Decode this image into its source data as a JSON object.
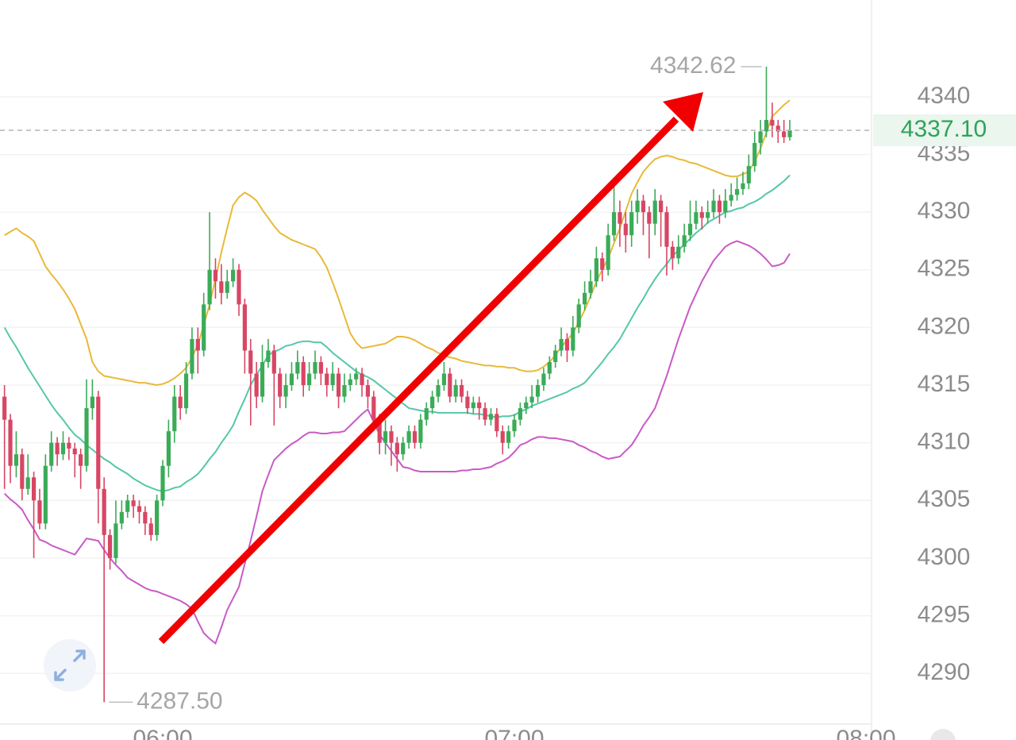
{
  "chart_data": {
    "type": "candlestick",
    "categories": [
      null,
      null,
      null,
      null,
      null,
      null,
      null,
      null,
      null,
      null,
      null,
      null,
      null,
      null,
      null,
      null,
      null,
      null,
      null,
      null,
      null,
      null,
      null,
      null,
      null,
      null,
      null,
      "06:00",
      null,
      null,
      null,
      null,
      null,
      null,
      null,
      null,
      null,
      null,
      null,
      null,
      null,
      null,
      null,
      null,
      null,
      null,
      null,
      null,
      null,
      null,
      null,
      null,
      null,
      null,
      null,
      null,
      null,
      null,
      null,
      null,
      null,
      null,
      null,
      null,
      null,
      null,
      null,
      null,
      null,
      null,
      null,
      null,
      null,
      null,
      null,
      null,
      null,
      null,
      null,
      null,
      null,
      null,
      null,
      null,
      null,
      null,
      null,
      "07:00",
      null,
      null,
      null,
      null,
      null,
      null,
      null,
      null,
      null,
      null,
      null,
      null,
      null,
      null,
      null,
      null,
      null,
      null,
      null,
      null,
      null,
      null,
      null,
      null,
      null,
      null,
      null,
      null,
      null,
      null,
      null,
      null,
      null,
      null,
      null,
      null,
      null,
      null,
      null,
      null,
      null,
      null,
      null,
      null,
      null,
      null,
      null,
      null,
      null,
      null,
      null,
      null,
      null,
      null,
      null,
      null,
      null,
      null,
      null,
      "08:00"
    ],
    "open": [
      4314,
      4312,
      4308,
      4309,
      4306,
      4307,
      4305,
      4303,
      4308,
      4310,
      4309,
      4310,
      4309.5,
      4309,
      4308,
      4313,
      4314,
      4306,
      4302,
      4300,
      4303,
      4304,
      4305,
      4304.5,
      4304,
      4303,
      4302,
      4305,
      4308,
      4311,
      4314,
      4313,
      4316,
      4319,
      4318,
      4322,
      4325,
      4324,
      4323,
      4324,
      4325,
      4322,
      4318,
      4316,
      4314,
      4317,
      4318,
      4316,
      4314,
      4315,
      4316,
      4317,
      4315,
      4316,
      4317,
      4316,
      4315,
      4316,
      4314,
      4315,
      4315.5,
      4316,
      4315,
      4314,
      4312,
      4310,
      4311,
      4310,
      4309,
      4310,
      4311,
      4310,
      4312,
      4313,
      4314,
      4315,
      4316,
      4314,
      4315,
      4314,
      4313,
      4313.5,
      4313,
      4312,
      4312.5,
      4311,
      4310,
      4311,
      4312,
      4313,
      4313.5,
      4314,
      4315,
      4316,
      4317,
      4318,
      4319,
      4318,
      4320,
      4322,
      4323,
      4324,
      4326,
      4325,
      4328,
      4330,
      4329,
      4328,
      4330,
      4331,
      4330,
      4329,
      4331,
      4330,
      4327,
      4326,
      4327,
      4328,
      4329,
      4330,
      4329.5,
      4330,
      4331,
      4330,
      4331,
      4331.5,
      4332,
      4332.5,
      4334,
      4336,
      4337,
      4338,
      4337.5,
      4337,
      4336.5,
      null,
      null,
      null,
      null,
      null,
      null,
      null,
      null,
      null,
      null,
      null,
      null,
      null
    ],
    "high": [
      4315,
      4312.5,
      4311,
      4309.5,
      4309,
      4307.5,
      4306,
      4309,
      4311,
      4310.5,
      4311,
      4310.5,
      4310,
      4309.5,
      4315.5,
      4315.5,
      4314.5,
      4307,
      4302.5,
      4305,
      4305,
      4305.5,
      4305.5,
      4305,
      4304.5,
      4303.5,
      4305.5,
      4308.5,
      4312,
      4315,
      4315,
      4317,
      4320,
      4320,
      4323,
      4330,
      4326,
      4325.5,
      4325,
      4326,
      4325.5,
      4322.5,
      4319,
      4317,
      4318.5,
      4319,
      4318.5,
      4316.5,
      4316,
      4317,
      4318,
      4317.5,
      4317,
      4318,
      4317.5,
      4316.5,
      4317,
      4316.5,
      4316,
      4316,
      4316.5,
      4316.5,
      4315.5,
      4314.5,
      4312.5,
      4312,
      4311.5,
      4310.5,
      4310.5,
      4311.5,
      4311.5,
      4312.5,
      4313.5,
      4314.5,
      4315.5,
      4317,
      4316.5,
      4315.5,
      4315.5,
      4314.5,
      4314,
      4314,
      4313.5,
      4313,
      4313,
      4311.5,
      4311.5,
      4312.5,
      4313.5,
      4314,
      4315,
      4315.5,
      4316.5,
      4317.5,
      4318.5,
      4320,
      4319.5,
      4321,
      4322.5,
      4324,
      4325,
      4327,
      4326.5,
      4329,
      4333,
      4331,
      4330,
      4331,
      4332,
      4331.5,
      4330.5,
      4332,
      4331.5,
      4330.5,
      4327.5,
      4328,
      4329,
      4331,
      4331,
      4330.5,
      4331,
      4332,
      4331.5,
      4332,
      4332.5,
      4333,
      4333.5,
      4335,
      4337,
      4338,
      4342.62,
      4339.5,
      4338,
      4338,
      4338,
      null,
      null,
      null,
      null,
      null,
      null,
      null,
      null,
      null,
      null,
      null,
      null,
      null
    ],
    "low": [
      4306,
      4306.5,
      4307,
      4305,
      4305.5,
      4300,
      4302.5,
      4302.5,
      4307.5,
      4308,
      4308.5,
      4308.5,
      4307,
      4306,
      4307.5,
      4312,
      4303,
      4287.5,
      4299,
      4299.5,
      4302.5,
      4303.5,
      4303.5,
      4303,
      4302,
      4301.5,
      4301.5,
      4304.5,
      4307,
      4310,
      4312,
      4312.5,
      4315.5,
      4316,
      4317.5,
      4321.5,
      4322.5,
      4322,
      4322.5,
      4323.5,
      4321,
      4316,
      4311.5,
      4313,
      4313.5,
      4316.5,
      4311.5,
      4313,
      4313,
      4314.5,
      4315.5,
      4314,
      4314.5,
      4315.5,
      4315,
      4314,
      4314.5,
      4313,
      4313.5,
      4314.5,
      4315,
      4314,
      4313,
      4311,
      4309,
      4309,
      4308,
      4307.5,
      4308.5,
      4309.5,
      4309.5,
      4309.5,
      4311.5,
      4312.5,
      4313.5,
      4314.5,
      4313.5,
      4313.5,
      4313.5,
      4312.5,
      4312.5,
      4312,
      4311.5,
      4311.5,
      4310.5,
      4309,
      4309.5,
      4310.5,
      4311.5,
      4312.5,
      4313,
      4313.5,
      4314.5,
      4315.5,
      4316.5,
      4317.5,
      4317,
      4317.5,
      4319.5,
      4321.5,
      4322.5,
      4323.5,
      4324,
      4324.5,
      4327.5,
      4327,
      4326.5,
      4327,
      4329,
      4328,
      4326,
      4328,
      4327,
      4324.5,
      4325,
      4325.5,
      4326.5,
      4327.5,
      4328.5,
      4328.5,
      4329,
      4329.5,
      4329,
      4329.5,
      4330.5,
      4331,
      4331.5,
      4332,
      4333.5,
      4335,
      4336.5,
      4336.5,
      4336,
      4336,
      4336.2,
      null,
      null,
      null,
      null,
      null,
      null,
      null,
      null,
      null,
      null,
      null,
      null,
      null
    ],
    "close": [
      4312,
      4308,
      4309,
      4306,
      4307,
      4305,
      4303,
      4308,
      4310,
      4309,
      4310,
      4309.5,
      4309,
      4308,
      4313,
      4314,
      4306,
      4302,
      4300,
      4303,
      4304,
      4305,
      4304.5,
      4304,
      4303,
      4302,
      4305,
      4308,
      4311,
      4314,
      4313,
      4316,
      4319,
      4318,
      4322,
      4325,
      4324,
      4323,
      4324,
      4325,
      4322,
      4318,
      4316,
      4314,
      4317,
      4318,
      4316,
      4314,
      4315,
      4316,
      4317,
      4315,
      4316,
      4317,
      4316,
      4315,
      4316,
      4314,
      4315,
      4315.5,
      4316,
      4315,
      4314,
      4312,
      4310,
      4311,
      4310,
      4309,
      4310,
      4311,
      4310,
      4312,
      4313,
      4314,
      4315,
      4316,
      4314,
      4315,
      4314,
      4313,
      4313.5,
      4313,
      4312,
      4312.5,
      4311,
      4310,
      4311,
      4312,
      4313,
      4313.5,
      4314,
      4315,
      4316,
      4317,
      4318,
      4319,
      4318,
      4320,
      4322,
      4323,
      4324,
      4326,
      4325,
      4328,
      4330,
      4329,
      4328,
      4330,
      4331,
      4330,
      4329,
      4331,
      4330,
      4327,
      4326,
      4327,
      4328,
      4329,
      4330,
      4329.5,
      4330,
      4331,
      4330,
      4331,
      4331.5,
      4332,
      4332.5,
      4334,
      4336,
      4337,
      4338,
      4337.5,
      4337,
      4336.5,
      4337.1,
      null,
      null,
      null,
      null,
      null,
      null,
      null,
      null,
      null,
      null,
      null,
      null,
      null
    ],
    "up_color": "#3bab58",
    "down_color": "#d84664",
    "overlays": [
      {
        "color": "#e8b93a",
        "values": [
          4328.0,
          4328.3,
          4328.6,
          4328.2,
          4327.9,
          4327.5,
          4326.4,
          4325.3,
          4324.6,
          4324.0,
          4323.3,
          4322.5,
          4321.6,
          4320.3,
          4319.0,
          4317.0,
          4316.2,
          4315.8,
          4315.7,
          4315.6,
          4315.5,
          4315.4,
          4315.3,
          4315.2,
          4315.2,
          4315.1,
          4315.0,
          4315.1,
          4315.3,
          4315.6,
          4316.0,
          4316.5,
          4317.4,
          4318.5,
          4320.2,
          4322.0,
          4324.2,
          4326.5,
          4328.6,
          4330.6,
          4331.3,
          4331.7,
          4331.4,
          4331.0,
          4330.2,
          4329.5,
          4328.8,
          4328.2,
          4327.9,
          4327.6,
          4327.4,
          4327.2,
          4327.0,
          4326.8,
          4326.1,
          4325.2,
          4323.9,
          4322.5,
          4321.0,
          4319.5,
          4318.7,
          4318.2,
          4318.3,
          4318.4,
          4318.5,
          4318.6,
          4318.9,
          4319.2,
          4319.2,
          4319.1,
          4318.9,
          4318.6,
          4318.3,
          4318.1,
          4317.8,
          4317.6,
          4317.4,
          4317.3,
          4317.1,
          4317.0,
          4316.9,
          4316.8,
          4316.7,
          4316.7,
          4316.6,
          4316.6,
          4316.5,
          4316.5,
          4316.3,
          4316.2,
          4316.2,
          4316.3,
          4316.6,
          4317.0,
          4317.6,
          4318.3,
          4318.9,
          4319.5,
          4320.5,
          4321.5,
          4322.7,
          4324.0,
          4325.0,
          4326.0,
          4327.3,
          4328.6,
          4330.1,
          4331.6,
          4332.6,
          4333.5,
          4334.1,
          4334.6,
          4334.8,
          4334.9,
          4334.8,
          4334.6,
          4334.5,
          4334.3,
          4334.2,
          4334.0,
          4333.8,
          4333.6,
          4333.4,
          4333.2,
          4333.1,
          4333.1,
          4333.3,
          4333.5,
          4334.4,
          4335.5,
          4336.9,
          4338.3,
          4338.8,
          4339.3,
          4339.7,
          null,
          null,
          null,
          null,
          null,
          null,
          null,
          null,
          null,
          null,
          null,
          null,
          null
        ]
      },
      {
        "color": "#55c7a9",
        "values": [
          4320.0,
          4319.1,
          4318.3,
          4317.4,
          4316.5,
          4315.7,
          4314.9,
          4314.1,
          4313.3,
          4312.6,
          4312.0,
          4311.3,
          4310.7,
          4310.3,
          4309.8,
          4309.4,
          4309.0,
          4308.6,
          4308.3,
          4307.9,
          4307.6,
          4307.3,
          4306.9,
          4306.6,
          4306.3,
          4306.1,
          4305.9,
          4305.8,
          4305.9,
          4306.1,
          4306.2,
          4306.6,
          4306.9,
          4307.3,
          4307.9,
          4308.6,
          4309.2,
          4310.0,
          4310.7,
          4311.5,
          4312.7,
          4313.8,
          4315.0,
          4315.9,
          4316.7,
          4317.6,
          4317.9,
          4318.1,
          4318.4,
          4318.5,
          4318.7,
          4318.8,
          4318.8,
          4318.7,
          4318.7,
          4318.3,
          4317.8,
          4317.4,
          4317.0,
          4316.6,
          4316.2,
          4315.9,
          4315.7,
          4315.4,
          4315.0,
          4314.6,
          4314.2,
          4313.8,
          4313.4,
          4313.0,
          4312.9,
          4312.8,
          4312.7,
          4312.7,
          4312.6,
          4312.6,
          4312.6,
          4312.6,
          4312.6,
          4312.6,
          4312.5,
          4312.5,
          4312.4,
          4312.3,
          4312.2,
          4312.3,
          4312.3,
          4312.4,
          4312.7,
          4312.9,
          4313.2,
          4313.4,
          4313.6,
          4313.8,
          4314.0,
          4314.2,
          4314.4,
          4314.7,
          4314.9,
          4315.2,
          4315.8,
          4316.4,
          4317.0,
          4317.7,
          4318.3,
          4319.0,
          4319.9,
          4320.8,
          4321.7,
          4322.5,
          4323.4,
          4324.2,
          4324.9,
          4325.5,
          4326.2,
          4326.7,
          4327.2,
          4327.7,
          4328.2,
          4328.6,
          4329.1,
          4329.4,
          4329.7,
          4330.0,
          4330.1,
          4330.3,
          4330.4,
          4330.7,
          4330.9,
          4331.2,
          4331.6,
          4331.9,
          4332.3,
          4332.7,
          4333.2,
          null,
          null,
          null,
          null,
          null,
          null,
          null,
          null,
          null,
          null,
          null,
          null,
          null
        ]
      },
      {
        "color": "#c95ac6",
        "values": [
          4305.6,
          4305.1,
          4304.7,
          4304.2,
          4303.3,
          4302.5,
          4301.6,
          4301.4,
          4301.1,
          4300.9,
          4300.7,
          4300.5,
          4300.3,
          4301.0,
          4301.7,
          4301.6,
          4301.5,
          4300.7,
          4300.0,
          4299.4,
          4298.9,
          4298.3,
          4298.0,
          4297.7,
          4297.4,
          4297.2,
          4297.1,
          4296.9,
          4296.7,
          4296.5,
          4296.3,
          4296.0,
          4295.6,
          4294.5,
          4293.5,
          4293.0,
          4292.6,
          4294.0,
          4295.5,
          4296.5,
          4297.5,
          4299.5,
          4301.5,
          4303.6,
          4305.8,
          4307.2,
          4308.5,
          4309.0,
          4309.5,
          4309.9,
          4310.2,
          4310.6,
          4310.9,
          4310.9,
          4310.8,
          4310.8,
          4310.9,
          4310.9,
          4311.0,
          4311.5,
          4312.0,
          4312.5,
          4312.9,
          4311.8,
          4310.7,
          4310.0,
          4309.3,
          4308.6,
          4307.9,
          4307.8,
          4307.6,
          4307.5,
          4307.5,
          4307.5,
          4307.5,
          4307.5,
          4307.5,
          4307.5,
          4307.6,
          4307.6,
          4307.7,
          4307.7,
          4307.8,
          4307.9,
          4308.2,
          4308.4,
          4308.7,
          4309.2,
          4309.8,
          4310.0,
          4310.3,
          4310.5,
          4310.5,
          4310.4,
          4310.4,
          4310.3,
          4310.2,
          4310.1,
          4309.8,
          4309.6,
          4309.3,
          4309.1,
          4308.8,
          4308.6,
          4308.7,
          4308.8,
          4309.3,
          4309.8,
          4310.6,
          4311.5,
          4312.2,
          4313.0,
          4314.4,
          4315.8,
          4317.4,
          4319.0,
          4320.4,
          4321.8,
          4322.9,
          4324.0,
          4324.9,
          4325.8,
          4326.4,
          4327.0,
          4327.3,
          4327.5,
          4327.3,
          4327.1,
          4326.8,
          4326.4,
          4325.9,
          4325.3,
          4325.4,
          4325.6,
          4326.4,
          null,
          null,
          null,
          null,
          null,
          null,
          null,
          null,
          null,
          null,
          null,
          null,
          null
        ]
      }
    ],
    "ylim": [
      4285.6,
      4348.4
    ],
    "yticks": [
      4290,
      4295,
      4300,
      4305,
      4310,
      4315,
      4320,
      4325,
      4330,
      4335,
      4340
    ],
    "grid": true,
    "high_label": "4342.62",
    "low_label": "4287.50",
    "last_price_label": "4337.10",
    "last_price_color": "#2ea35a"
  }
}
